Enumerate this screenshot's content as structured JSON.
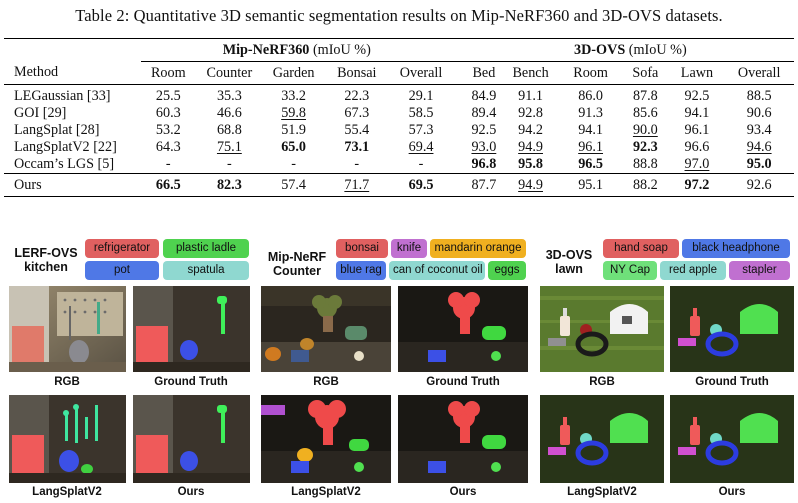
{
  "caption": "Table 2: Quantitative 3D semantic segmentation results on Mip-NeRF360 and 3D-OVS datasets.",
  "table": {
    "group1": {
      "name": "Mip-NeRF360",
      "unit": "(mIoU %)"
    },
    "group2": {
      "name": "3D-OVS",
      "unit": "(mIoU %)"
    },
    "method_header": "Method",
    "columns1": [
      "Room",
      "Counter",
      "Garden",
      "Bonsai",
      "Overall"
    ],
    "columns2": [
      "Bed",
      "Bench",
      "Room",
      "Sofa",
      "Lawn",
      "Overall"
    ],
    "rows": [
      {
        "method": "LEGaussian [33]",
        "values": [
          "25.5",
          "35.3",
          "33.2",
          "22.3",
          "29.1",
          "84.9",
          "91.1",
          "86.0",
          "87.8",
          "92.5",
          "88.5"
        ],
        "bold": [],
        "underline": []
      },
      {
        "method": "GOI [29]",
        "values": [
          "60.3",
          "46.6",
          "59.8",
          "67.3",
          "58.5",
          "89.4",
          "92.8",
          "91.3",
          "85.6",
          "94.1",
          "90.6"
        ],
        "bold": [],
        "underline": [
          2
        ]
      },
      {
        "method": "LangSplat [28]",
        "values": [
          "53.2",
          "68.8",
          "51.9",
          "55.4",
          "57.3",
          "92.5",
          "94.2",
          "94.1",
          "90.0",
          "96.1",
          "93.4"
        ],
        "bold": [],
        "underline": [
          8
        ]
      },
      {
        "method": "LangSplatV2 [22]",
        "values": [
          "64.3",
          "75.1",
          "65.0",
          "73.1",
          "69.4",
          "93.0",
          "94.9",
          "96.1",
          "92.3",
          "96.6",
          "94.6"
        ],
        "bold": [
          2,
          3,
          8
        ],
        "underline": [
          1,
          4,
          5,
          6,
          7,
          10
        ]
      },
      {
        "method": "Occam’s LGS [5]",
        "values": [
          "-",
          "-",
          "-",
          "-",
          "-",
          "96.8",
          "95.8",
          "96.5",
          "88.8",
          "97.0",
          "95.0"
        ],
        "bold": [
          5,
          6,
          7,
          10
        ],
        "underline": [
          9
        ]
      }
    ],
    "ours": {
      "method": "Ours",
      "values": [
        "66.5",
        "82.3",
        "57.4",
        "71.7",
        "69.5",
        "87.7",
        "94.9",
        "95.1",
        "88.2",
        "97.2",
        "92.6"
      ],
      "bold": [
        0,
        1,
        4,
        9
      ],
      "underline": [
        3,
        6
      ]
    }
  },
  "figure": {
    "groups": [
      {
        "title_lines": [
          "LERF-OVS",
          "kitchen"
        ],
        "tags": [
          {
            "text": "refrigerator",
            "color": "#e06060"
          },
          {
            "text": "plastic ladle",
            "color": "#4fd24f"
          },
          {
            "text": "pot",
            "color": "#4f78e6"
          },
          {
            "text": "spatula",
            "color": "#8fd8d0"
          }
        ],
        "labels": [
          "RGB",
          "Ground Truth",
          "LangSplatV2",
          "Ours"
        ]
      },
      {
        "title_lines": [
          "Mip-NeRF",
          "Counter"
        ],
        "tags": [
          {
            "text": "bonsai",
            "color": "#e06060"
          },
          {
            "text": "knife",
            "color": "#c070d0"
          },
          {
            "text": "mandarin orange",
            "color": "#f0b020"
          },
          {
            "text": "blue rag",
            "color": "#4f78e6"
          },
          {
            "text": "can of coconut oil",
            "color": "#8fd8d0"
          },
          {
            "text": "eggs",
            "color": "#4fd24f"
          }
        ],
        "labels": [
          "RGB",
          "Ground Truth",
          "LangSplatV2",
          "Ours"
        ]
      },
      {
        "title_lines": [
          "3D-OVS",
          "lawn"
        ],
        "tags": [
          {
            "text": "hand soap",
            "color": "#e06060"
          },
          {
            "text": "black headphone",
            "color": "#4f78e6"
          },
          {
            "text": "NY Cap",
            "color": "#6fe07a"
          },
          {
            "text": "red apple",
            "color": "#8fd8d0"
          },
          {
            "text": "stapler",
            "color": "#c070d0"
          }
        ],
        "labels": [
          "RGB",
          "Ground Truth",
          "LangSplatV2",
          "Ours"
        ]
      }
    ]
  }
}
